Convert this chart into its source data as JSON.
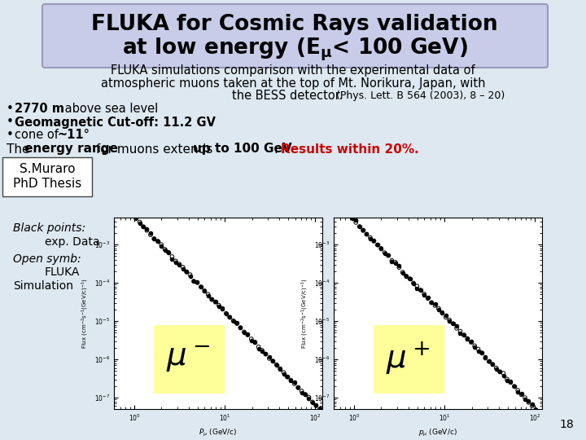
{
  "background_color": "#dde8f0",
  "title_box_color": "#c8cce8",
  "title_line1": "FLUKA for Cosmic Rays validation",
  "title_line2": "at low energy (E$_{\\mu}$< 100 GeV)",
  "subtitle_line1": "FLUKA simulations comparison with the experimental data of",
  "subtitle_line2": "atmospheric muons taken at the top of Mt. Norikura, Japan, with",
  "subtitle_line3": "the BESS detector.",
  "subtitle_ref": "  (Phys. Lett. B 564 (2003), 8 – 20)",
  "bullet1_bold": "2770 m",
  "bullet1_rest": " above sea level",
  "bullet2_bold": "Geomagnetic Cut-off: 11.2 GV",
  "bullet3_bold": "cone of ~11°",
  "label_smuraro": "S.Muraro",
  "label_phd": "PhD Thesis",
  "yellow_box_color": "#ffff99",
  "page_number": "18"
}
